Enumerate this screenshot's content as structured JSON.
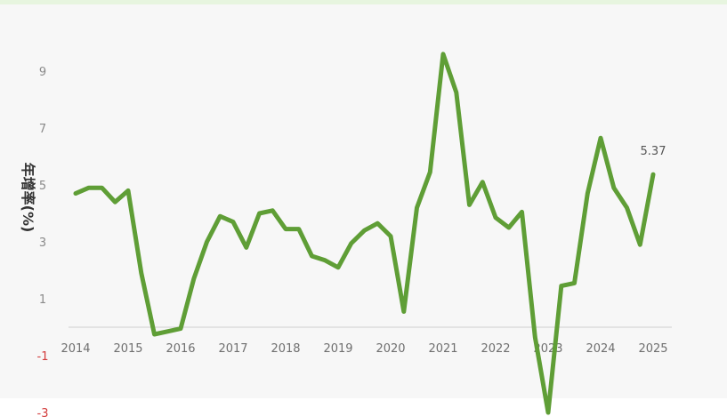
{
  "chart_data": {
    "type": "line",
    "title": "",
    "xlabel": "",
    "ylabel": "年增率(%)",
    "ylim": [
      -3,
      10.5
    ],
    "yticks": [
      9,
      7,
      5,
      3,
      1,
      -1,
      -3
    ],
    "xticks": [
      "2014",
      "2015",
      "2016",
      "2017",
      "2018",
      "2019",
      "2020",
      "2021",
      "2022",
      "2023",
      "2024",
      "2025"
    ],
    "grid": false,
    "line_color": "#5f9e36",
    "negative_tick_color": "#d23b3b",
    "x": [
      2014.0,
      2014.25,
      2014.5,
      2014.75,
      2015.0,
      2015.25,
      2015.5,
      2015.75,
      2016.0,
      2016.25,
      2016.5,
      2016.75,
      2017.0,
      2017.25,
      2017.5,
      2017.75,
      2018.0,
      2018.25,
      2018.5,
      2018.75,
      2019.0,
      2019.25,
      2019.5,
      2019.75,
      2020.0,
      2020.25,
      2020.5,
      2020.75,
      2021.0,
      2021.25,
      2021.5,
      2021.75,
      2022.0,
      2022.25,
      2022.5,
      2022.75,
      2023.0,
      2023.25,
      2023.5,
      2023.75,
      2024.0,
      2024.25,
      2024.5,
      2024.75,
      2025.0
    ],
    "values": [
      4.7,
      4.9,
      4.9,
      4.4,
      4.8,
      1.9,
      -0.25,
      -0.15,
      -0.05,
      1.7,
      3.0,
      3.9,
      3.7,
      2.8,
      4.0,
      4.1,
      3.45,
      3.45,
      2.5,
      2.35,
      2.1,
      2.95,
      3.4,
      3.65,
      3.2,
      0.55,
      4.2,
      5.45,
      9.6,
      8.25,
      4.3,
      5.1,
      3.85,
      3.5,
      4.05,
      -0.35,
      -3.0,
      1.45,
      1.55,
      4.7,
      6.65,
      4.9,
      4.2,
      2.9,
      5.37
    ],
    "annotation": "5.37"
  }
}
